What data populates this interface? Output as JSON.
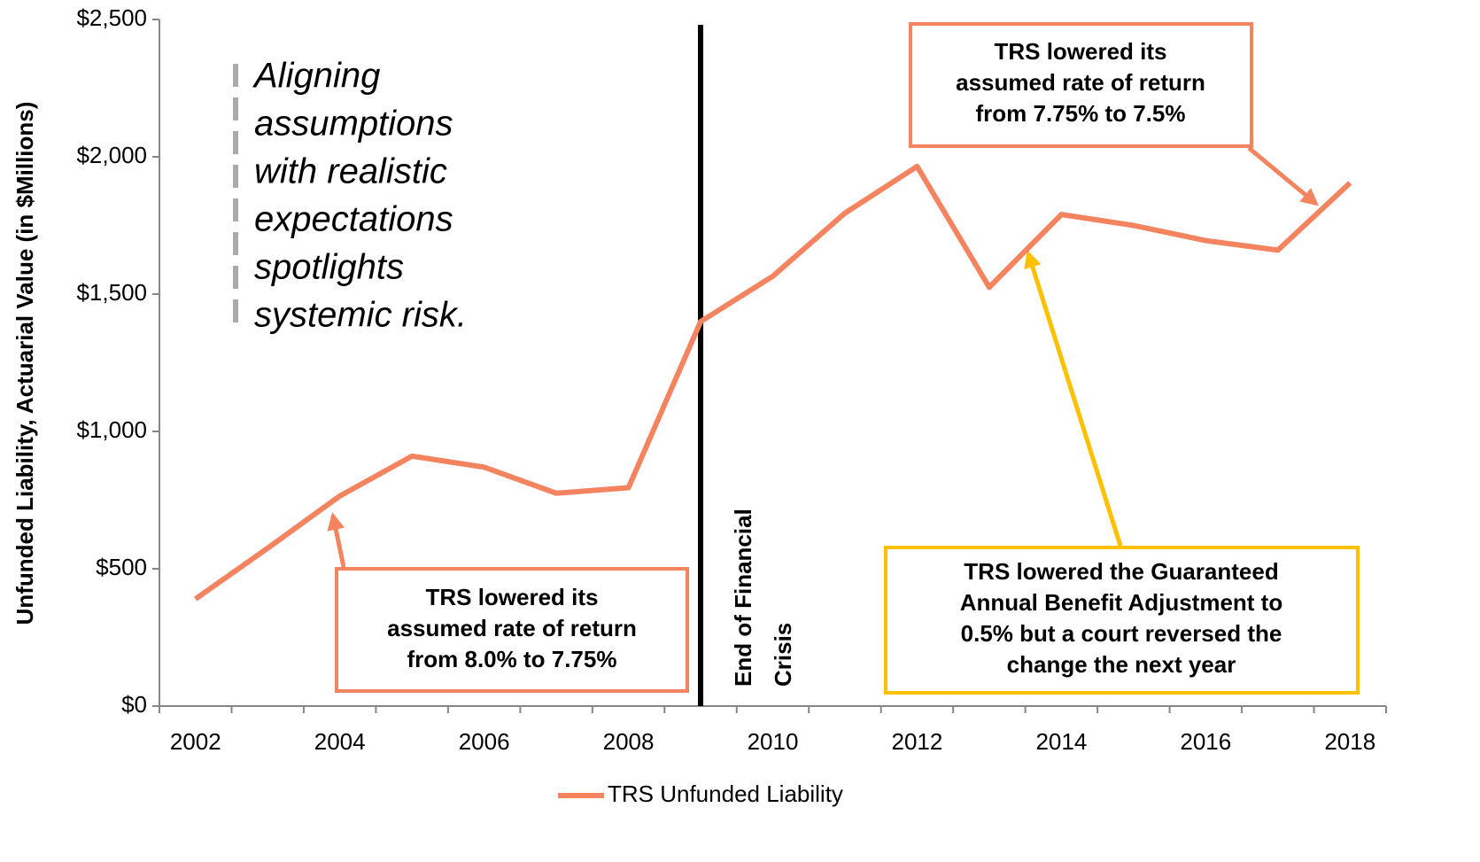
{
  "chart_data": {
    "type": "line",
    "y_label": "Unfunded Liability, Actuarial Value (in $Millions)",
    "categories": [
      "2002",
      null,
      "2004",
      null,
      "2006",
      null,
      "2008",
      null,
      "2010",
      null,
      "2012",
      null,
      "2014",
      null,
      "2016",
      null,
      "2018"
    ],
    "series": [
      {
        "name": "TRS Unfunded Liability",
        "color": "#f4845f",
        "values": [
          390,
          575,
          765,
          910,
          870,
          775,
          795,
          1400,
          1565,
          1795,
          1965,
          1525,
          1790,
          1750,
          1695,
          1660,
          1905
        ]
      }
    ],
    "ylim": [
      0,
      2500
    ],
    "yticks": [
      {
        "value": 0,
        "label": "$0"
      },
      {
        "value": 500,
        "label": "$500"
      },
      {
        "value": 1000,
        "label": "$1,000"
      },
      {
        "value": 1500,
        "label": "$1,500"
      },
      {
        "value": 2000,
        "label": "$2,000"
      },
      {
        "value": 2500,
        "label": "$2,500"
      }
    ],
    "legend": "bottom",
    "quote": [
      "Aligning",
      "assumptions",
      "with realistic",
      "expectations",
      "spotlights",
      "systemic risk."
    ],
    "event": [
      "End of Financial",
      "Crisis"
    ],
    "annotations": [
      {
        "lines": [
          "TRS lowered its",
          "assumed rate of return",
          "from 8.0% to 7.75%"
        ]
      },
      {
        "lines": [
          "TRS lowered its",
          "assumed rate of return",
          "from 7.75% to 7.5%"
        ]
      },
      {
        "lines": [
          "TRS lowered the Guaranteed",
          "Annual Benefit Adjustment to",
          "0.5% but a court reversed the",
          "change the next year"
        ]
      }
    ]
  }
}
